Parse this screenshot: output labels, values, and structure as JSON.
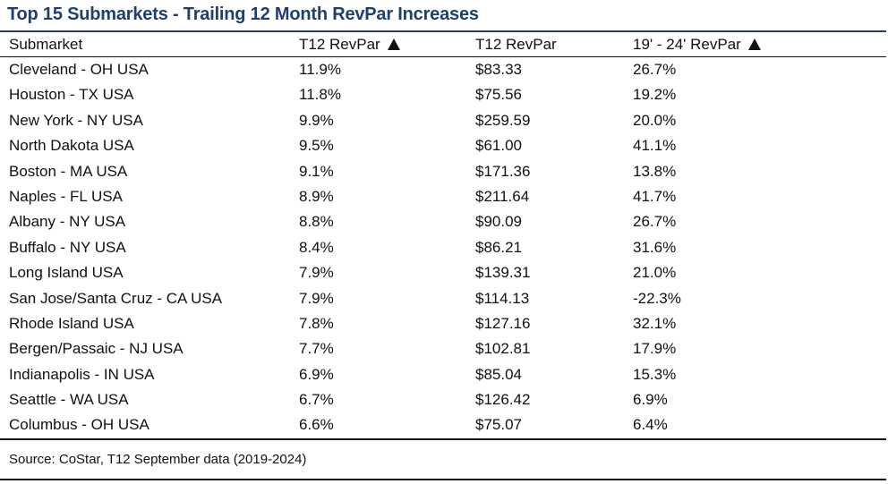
{
  "title": "Top 15 Submarkets - Trailing 12 Month RevPar Increases",
  "source": "Source: CoStar, T12 September data (2019-2024)",
  "colors": {
    "title": "#1f3f6e",
    "text": "#111111",
    "rules": "#111111"
  },
  "icons": {
    "sort_indicator": "up-triangle-icon"
  },
  "chart_data": {
    "type": "table",
    "title": "Top 15 Submarkets - Trailing 12 Month RevPar Increases",
    "columns": [
      {
        "label": "Submarket",
        "arrow": false
      },
      {
        "label": "T12 RevPar",
        "arrow": true
      },
      {
        "label": "T12 RevPar",
        "arrow": false
      },
      {
        "label": "19' - 24' RevPar",
        "arrow": true
      }
    ],
    "rows": [
      [
        "Cleveland - OH USA",
        "11.9%",
        "$83.33",
        "26.7%"
      ],
      [
        "Houston - TX USA",
        "11.8%",
        "$75.56",
        "19.2%"
      ],
      [
        "New York - NY USA",
        "9.9%",
        "$259.59",
        "20.0%"
      ],
      [
        "North Dakota USA",
        "9.5%",
        "$61.00",
        "41.1%"
      ],
      [
        "Boston - MA USA",
        "9.1%",
        "$171.36",
        "13.8%"
      ],
      [
        "Naples - FL USA",
        "8.9%",
        "$211.64",
        "41.7%"
      ],
      [
        "Albany - NY USA",
        "8.8%",
        "$90.09",
        "26.7%"
      ],
      [
        "Buffalo - NY USA",
        "8.4%",
        "$86.21",
        "31.6%"
      ],
      [
        "Long Island USA",
        "7.9%",
        "$139.31",
        "21.0%"
      ],
      [
        "San Jose/Santa Cruz - CA USA",
        "7.9%",
        "$114.13",
        "-22.3%"
      ],
      [
        "Rhode Island USA",
        "7.8%",
        "$127.16",
        "32.1%"
      ],
      [
        "Bergen/Passaic - NJ USA",
        "7.7%",
        "$102.81",
        "17.9%"
      ],
      [
        "Indianapolis - IN USA",
        "6.9%",
        "$85.04",
        "15.3%"
      ],
      [
        "Seattle - WA USA",
        "6.7%",
        "$126.42",
        "6.9%"
      ],
      [
        "Columbus - OH USA",
        "6.6%",
        "$75.07",
        "6.4%"
      ]
    ]
  }
}
